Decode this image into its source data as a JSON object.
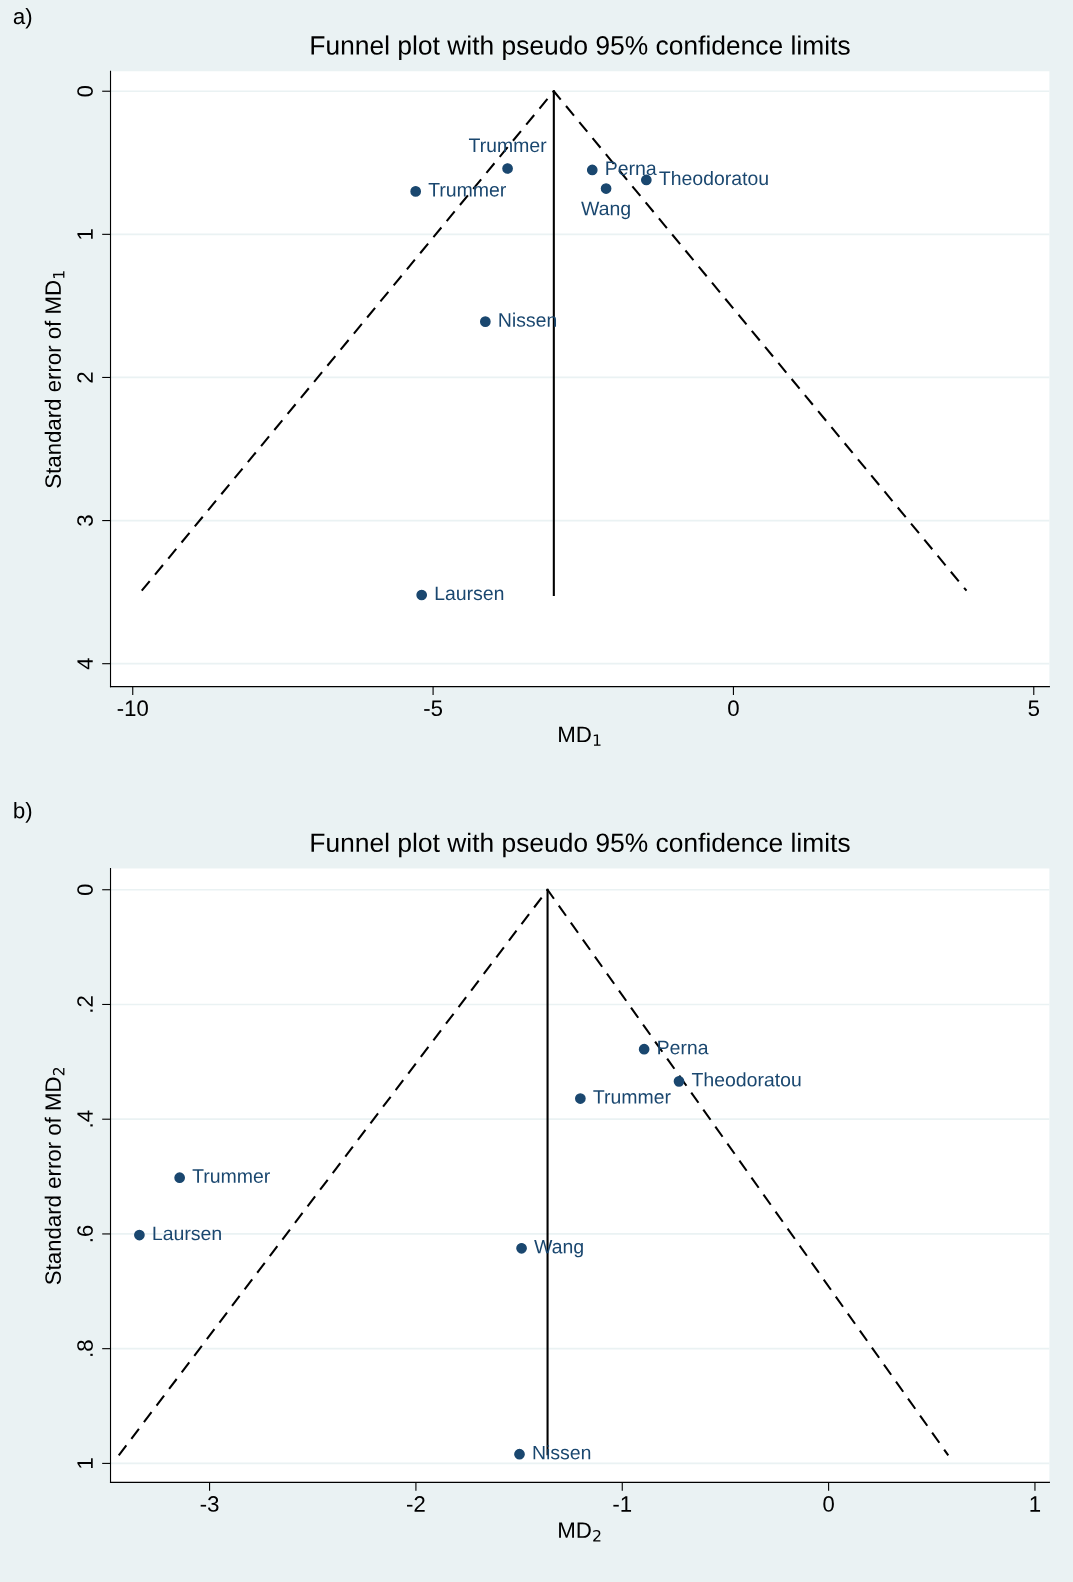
{
  "chart_data": [
    {
      "type": "scatter",
      "title": "Funnel plot with pseudo 95% confidence limits",
      "xlabel": "MD$_{1}$",
      "ylabel": "Standard error of MD$_{1}$",
      "xlim": [
        -10.37,
        5.26
      ],
      "xticks": [
        -10,
        -5,
        0,
        5
      ],
      "ylim": [
        4.16,
        -0.14
      ],
      "yticks": [
        0,
        1,
        2,
        3,
        4
      ],
      "grid": "y",
      "legend": false,
      "series": [
        {
          "marker": "circle",
          "color": "#1a476f",
          "x": [
            -3.76,
            -5.29,
            -2.35,
            -2.12,
            -1.45,
            -4.13,
            -5.19
          ],
          "values": [
            0.54,
            0.7,
            0.55,
            0.68,
            0.62,
            1.61,
            3.52
          ]
        },
        {
          "type": "line",
          "color": "#000000",
          "line_style": "dashed",
          "x": [
            -9.85,
            -2.99,
            3.88
          ],
          "values": [
            3.49,
            0,
            3.49
          ]
        },
        {
          "type": "line",
          "color": "#000000",
          "line_style": "solid",
          "x": [
            -2.99,
            -2.99
          ],
          "values": [
            0,
            3.52
          ]
        }
      ],
      "annotations": [
        "a)",
        {
          "text": "Trummer",
          "x": -3.76,
          "y": 0.54
        },
        {
          "text": "Trummer",
          "x": -5.29,
          "y": 0.7
        },
        {
          "text": "Perna",
          "x": -2.35,
          "y": 0.55
        },
        {
          "text": "Wang",
          "x": -2.12,
          "y": 0.68
        },
        {
          "text": "Theodoratou",
          "x": -1.45,
          "y": 0.62
        },
        {
          "text": "Nissen",
          "x": -4.13,
          "y": 1.61
        },
        {
          "text": "Laursen",
          "x": -5.19,
          "y": 3.52
        }
      ]
    },
    {
      "type": "scatter",
      "title": "Funnel plot with pseudo 95% confidence limits",
      "xlabel": "MD$_{2}$",
      "ylabel": "Standard error of MD$_{2}$",
      "xlim": [
        -3.48,
        1.07
      ],
      "xticks": [
        -3,
        -2,
        -1,
        0,
        1
      ],
      "ylim": [
        1.033,
        -0.037
      ],
      "yticks": [
        0,
        {
          "value": 0.2,
          "label": ".2"
        },
        {
          "value": 0.4,
          "label": ".4"
        },
        {
          "value": 0.6,
          "label": ".6"
        },
        {
          "value": 0.8,
          "label": ".8"
        },
        1
      ],
      "grid": "y",
      "legend": false,
      "series": [
        {
          "marker": "circle",
          "color": "#1a476f",
          "x": [
            -0.894,
            -0.725,
            -1.203,
            -3.145,
            -3.34,
            -1.488,
            -1.498
          ],
          "values": [
            0.278,
            0.334,
            0.364,
            0.502,
            0.602,
            0.625,
            0.984
          ]
        },
        {
          "type": "line",
          "color": "#000000",
          "line_style": "dashed",
          "x": [
            -3.44,
            -1.362,
            0.58
          ],
          "values": [
            0.986,
            0,
            0.986
          ]
        },
        {
          "type": "line",
          "color": "#000000",
          "line_style": "solid",
          "x": [
            -1.362,
            -1.362
          ],
          "values": [
            0,
            0.984
          ]
        }
      ],
      "annotations": [
        "b)",
        {
          "text": "Perna",
          "x": -0.894,
          "y": 0.278
        },
        {
          "text": "Theodoratou",
          "x": -0.725,
          "y": 0.334
        },
        {
          "text": "Trummer",
          "x": -1.203,
          "y": 0.364
        },
        {
          "text": "Trummer",
          "x": -3.145,
          "y": 0.502
        },
        {
          "text": "Laursen",
          "x": -3.34,
          "y": 0.602
        },
        {
          "text": "Wang",
          "x": -1.488,
          "y": 0.625
        },
        {
          "text": "Nissen",
          "x": -1.498,
          "y": 0.984
        }
      ]
    }
  ]
}
